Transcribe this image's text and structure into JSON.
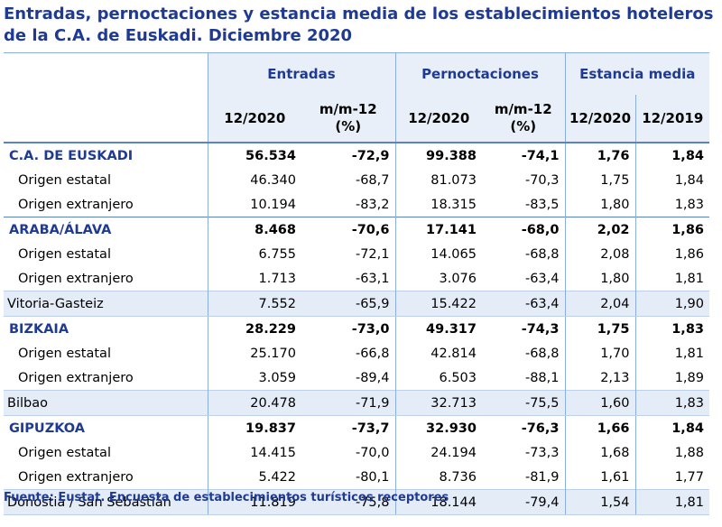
{
  "title_line1": "Entradas, pernoctaciones y estancia media de los establecimientos hoteleros",
  "title_line2": "de la C.A. de Euskadi.  Diciembre 2020",
  "groups": {
    "entradas": "Entradas",
    "pernoctaciones": "Pernoctaciones",
    "estancia": "Estancia media"
  },
  "subheaders": {
    "c1": "12/2020",
    "c2a": "m/m-12",
    "c2b": "(%)",
    "c3": "12/2020",
    "c4a": "m/m-12",
    "c4b": "(%)",
    "c5": "12/2020",
    "c6": "12/2019"
  },
  "rows": [
    {
      "type": "region",
      "label": "C.A. DE EUSKADI",
      "v": [
        "56.534",
        "-72,9",
        "99.388",
        "-74,1",
        "1,76",
        "1,84"
      ]
    },
    {
      "type": "origin",
      "label": "Origen estatal",
      "v": [
        "46.340",
        "-68,7",
        "81.073",
        "-70,3",
        "1,75",
        "1,84"
      ]
    },
    {
      "type": "origin",
      "label": "Origen extranjero",
      "v": [
        "10.194",
        "-83,2",
        "18.315",
        "-83,5",
        "1,80",
        "1,83"
      ]
    },
    {
      "type": "region",
      "label": "ARABA/ÁLAVA",
      "v": [
        "8.468",
        "-70,6",
        "17.141",
        "-68,0",
        "2,02",
        "1,86"
      ]
    },
    {
      "type": "origin",
      "label": "Origen estatal",
      "v": [
        "6.755",
        "-72,1",
        "14.065",
        "-68,8",
        "2,08",
        "1,86"
      ]
    },
    {
      "type": "origin",
      "label": "Origen extranjero",
      "v": [
        "1.713",
        "-63,1",
        "3.076",
        "-63,4",
        "1,80",
        "1,81"
      ]
    },
    {
      "type": "capital",
      "label": "Vitoria-Gasteiz",
      "v": [
        "7.552",
        "-65,9",
        "15.422",
        "-63,4",
        "2,04",
        "1,90"
      ]
    },
    {
      "type": "region",
      "label": "BIZKAIA",
      "v": [
        "28.229",
        "-73,0",
        "49.317",
        "-74,3",
        "1,75",
        "1,83"
      ]
    },
    {
      "type": "origin",
      "label": "Origen estatal",
      "v": [
        "25.170",
        "-66,8",
        "42.814",
        "-68,8",
        "1,70",
        "1,81"
      ]
    },
    {
      "type": "origin",
      "label": "Origen extranjero",
      "v": [
        "3.059",
        "-89,4",
        "6.503",
        "-88,1",
        "2,13",
        "1,89"
      ]
    },
    {
      "type": "capital",
      "label": "Bilbao",
      "v": [
        "20.478",
        "-71,9",
        "32.713",
        "-75,5",
        "1,60",
        "1,83"
      ]
    },
    {
      "type": "region",
      "label": "GIPUZKOA",
      "v": [
        "19.837",
        "-73,7",
        "32.930",
        "-76,3",
        "1,66",
        "1,84"
      ]
    },
    {
      "type": "origin",
      "label": "Origen estatal",
      "v": [
        "14.415",
        "-70,0",
        "24.194",
        "-73,3",
        "1,68",
        "1,88"
      ]
    },
    {
      "type": "origin",
      "label": "Origen extranjero",
      "v": [
        "5.422",
        "-80,1",
        "8.736",
        "-81,9",
        "1,61",
        "1,77"
      ]
    },
    {
      "type": "capital",
      "label": "Donostia / San Sebastián",
      "v": [
        "11.819",
        "-75,8",
        "18.144",
        "-79,4",
        "1,54",
        "1,81"
      ]
    }
  ],
  "source": "Fuente: Eustat. Encuesta de establecimientos turísticos receptores"
}
